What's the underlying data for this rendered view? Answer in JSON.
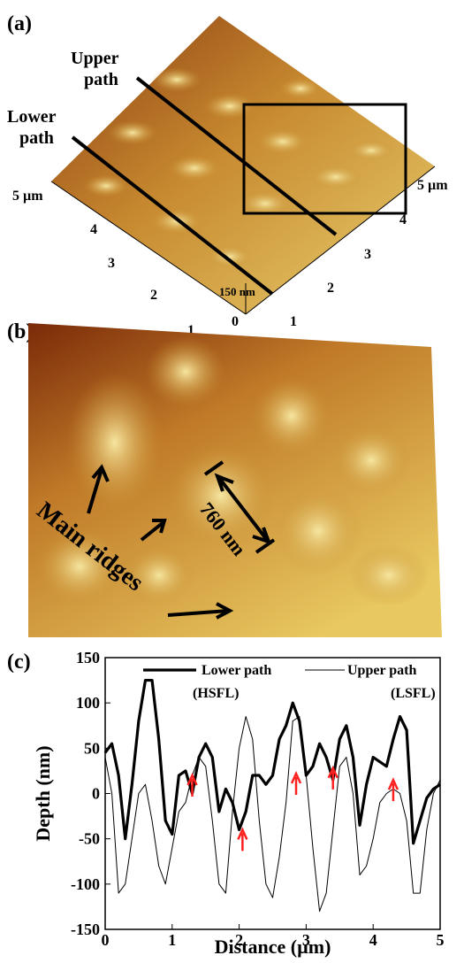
{
  "panel_a": {
    "label": "(a)",
    "upper_path": [
      "Upper",
      "path"
    ],
    "lower_path": [
      "Lower",
      "path"
    ],
    "left_axis": [
      "5 µm",
      "4",
      "3",
      "2",
      "1"
    ],
    "right_axis": [
      "5 µm",
      "4",
      "3",
      "2",
      "1"
    ],
    "origin": "0",
    "height": "150 nm"
  },
  "panel_b": {
    "label": "(b)",
    "spacing": "760 nm",
    "ridges": "Main ridges"
  },
  "chart_data": {
    "type": "line",
    "label": "(c)",
    "xlabel": "Distance (µm)",
    "ylabel": "Depth (nm)",
    "xlim": [
      0,
      5
    ],
    "ylim": [
      -150,
      150
    ],
    "xticks": [
      0,
      1,
      2,
      3,
      4,
      5
    ],
    "yticks": [
      -150,
      -100,
      -50,
      0,
      50,
      100,
      150
    ],
    "x": [
      0,
      0.1,
      0.2,
      0.3,
      0.4,
      0.5,
      0.6,
      0.7,
      0.8,
      0.9,
      1.0,
      1.1,
      1.2,
      1.3,
      1.4,
      1.5,
      1.6,
      1.7,
      1.8,
      1.9,
      2.0,
      2.1,
      2.2,
      2.3,
      2.4,
      2.5,
      2.6,
      2.7,
      2.8,
      2.9,
      3.0,
      3.1,
      3.2,
      3.3,
      3.4,
      3.5,
      3.6,
      3.7,
      3.8,
      3.9,
      4.0,
      4.1,
      4.2,
      4.3,
      4.4,
      4.5,
      4.6,
      4.7,
      4.8,
      4.9,
      5.0
    ],
    "series": [
      {
        "name": "Lower path",
        "note": "(HSFL)",
        "color": "#000000",
        "width": 3.2,
        "values": [
          45,
          55,
          20,
          -50,
          10,
          80,
          125,
          125,
          60,
          -30,
          -45,
          20,
          25,
          0,
          40,
          55,
          40,
          -20,
          5,
          -10,
          -40,
          -20,
          20,
          20,
          10,
          20,
          60,
          75,
          100,
          80,
          20,
          30,
          55,
          40,
          15,
          60,
          75,
          40,
          -35,
          10,
          40,
          35,
          30,
          60,
          85,
          70,
          -55,
          -30,
          -5,
          5,
          10
        ]
      },
      {
        "name": "Upper path",
        "note": "(LSFL)",
        "color": "#000000",
        "width": 1,
        "values": [
          40,
          0,
          -110,
          -100,
          -50,
          0,
          10,
          -30,
          -80,
          -100,
          -60,
          -20,
          -10,
          20,
          40,
          30,
          -30,
          -100,
          -110,
          -20,
          50,
          85,
          60,
          -30,
          -100,
          -115,
          -70,
          -10,
          80,
          85,
          20,
          -60,
          -130,
          -110,
          -40,
          30,
          40,
          0,
          -90,
          -80,
          -50,
          -10,
          0,
          5,
          0,
          -30,
          -110,
          -110,
          -40,
          0,
          15
        ]
      }
    ],
    "arrows": {
      "color": "#ff2020",
      "x": [
        1.3,
        2.05,
        2.85,
        3.4,
        4.3
      ],
      "y": [
        20,
        -40,
        22,
        28,
        15
      ]
    }
  }
}
